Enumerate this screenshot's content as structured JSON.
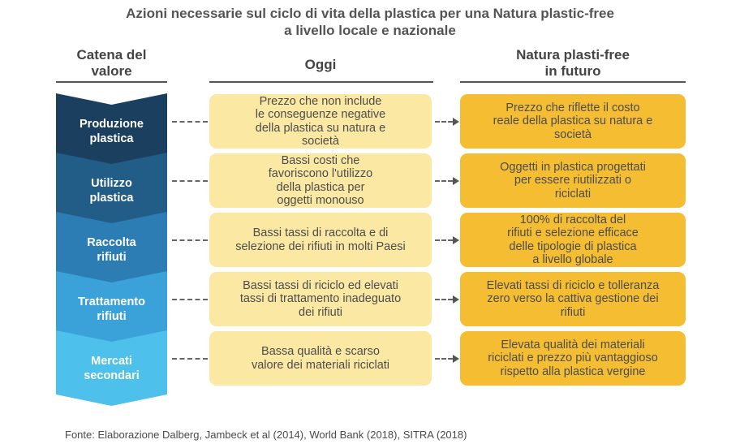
{
  "title": {
    "line1": "Azioni necessarie sul ciclo di vita della plastica per una Natura plastic-free",
    "line2": "a livello locale e nazionale"
  },
  "columns": {
    "chain": [
      "Catena del",
      "valore"
    ],
    "today": "Oggi",
    "future": [
      "Natura plasti-free",
      "in futuro"
    ]
  },
  "rows": [
    {
      "stage": [
        "Produzione",
        "plastica"
      ],
      "stage_color": "#1b3f5f",
      "today": [
        "Prezzo che non include",
        "le conseguenze negative",
        "della plastica su natura e",
        "società"
      ],
      "future": [
        "Prezzo che riflette il costo",
        "reale della plastica su natura e",
        "società"
      ]
    },
    {
      "stage": [
        "Utilizzo",
        "plastica"
      ],
      "stage_color": "#225d87",
      "today": [
        "Bassi costi che",
        "favoriscono l'utilizzo",
        "della plastica per",
        "oggetti monouso"
      ],
      "future": [
        "Oggetti in plastica progettati",
        "per essere riutilizzati o",
        "riciclati"
      ]
    },
    {
      "stage": [
        "Raccolta",
        "rifiuti"
      ],
      "stage_color": "#2c7db4",
      "today": [
        "Bassi tassi di raccolta e di",
        "selezione dei rifiuti in molti Paesi"
      ],
      "future": [
        "100% di raccolta del",
        "rifiuti e selezione efficace",
        "delle tipologie di plastica",
        "a livello globale"
      ]
    },
    {
      "stage": [
        "Trattamento",
        "rifiuti"
      ],
      "stage_color": "#3aa2d8",
      "today": [
        "Bassi tassi di riciclo ed elevati",
        "tassi di trattamento inadeguato",
        "dei rifiuti"
      ],
      "future": [
        "Elevati tassi di riciclo e tolleranza",
        "zero verso la cattiva gestione dei",
        "rifiuti"
      ]
    },
    {
      "stage": [
        "Mercati",
        "secondari"
      ],
      "stage_color": "#4ec0ec",
      "today": [
        "Bassa qualità e scarso",
        "valore dei materiali riciclati"
      ],
      "future": [
        "Elevata qualità dei materiali",
        "riciclati e prezzo più vantaggioso",
        "rispetto alla plastica vergine"
      ]
    }
  ],
  "footer": "Fonte: Elaborazione Dalberg, Jambeck et al (2014), World Bank (2018), SITRA (2018)"
}
